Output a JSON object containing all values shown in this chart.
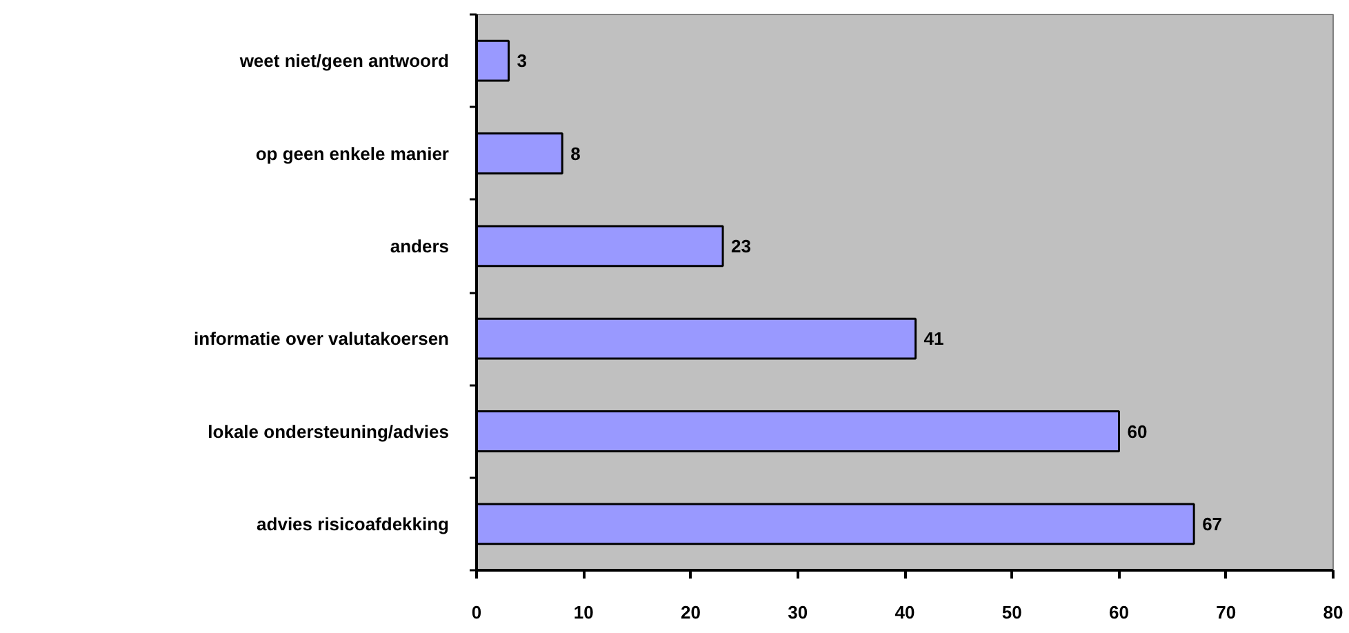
{
  "chart_data": {
    "type": "bar",
    "orientation": "horizontal",
    "categories": [
      "weet niet/geen antwoord",
      "op geen enkele manier",
      "anders",
      "informatie over valutakoersen",
      "lokale ondersteuning/advies",
      "advies risicoafdekking"
    ],
    "values": [
      3,
      8,
      23,
      41,
      60,
      67
    ],
    "color": "#9999ff",
    "xlim": [
      0,
      80
    ],
    "xticks": [
      0,
      10,
      20,
      30,
      40,
      50,
      60,
      70,
      80
    ],
    "data_labels": true
  }
}
